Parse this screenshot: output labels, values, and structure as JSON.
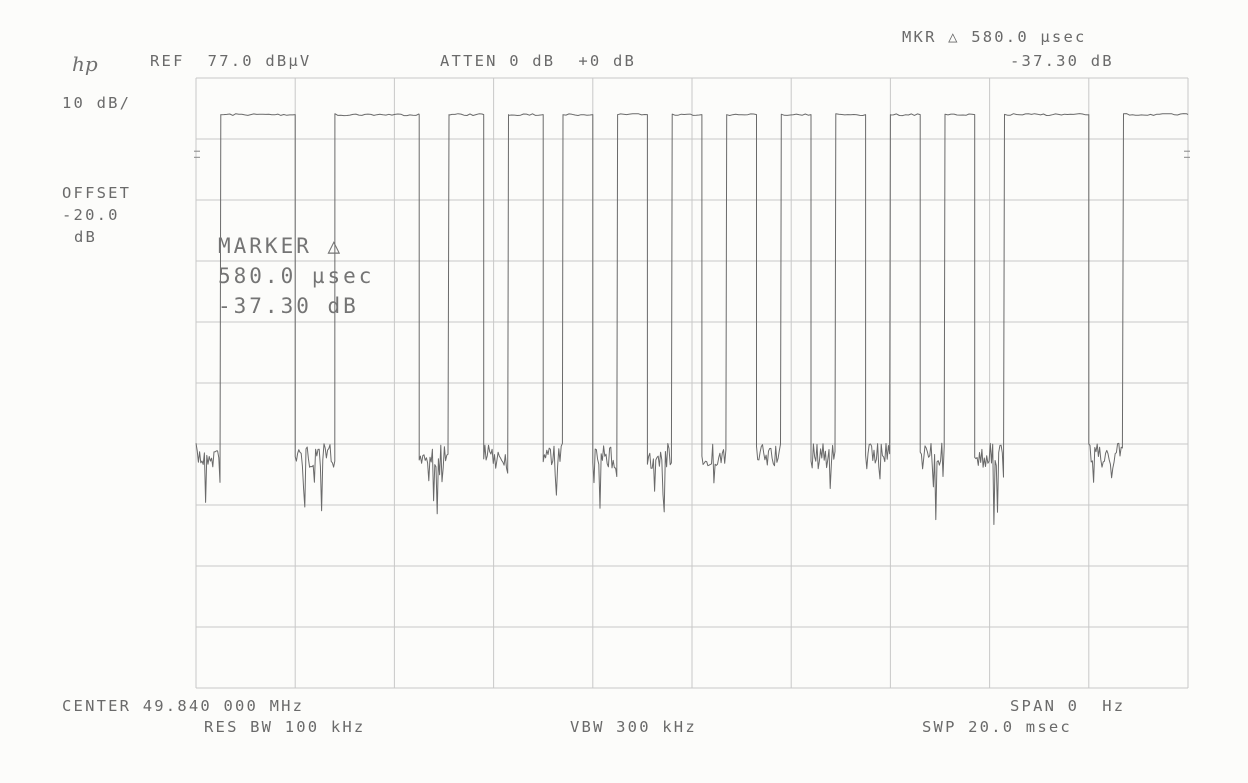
{
  "header": {
    "logo": "hp",
    "ref": "REF  77.0 dBµV",
    "atten": "ATTEN 0 dB  +0 dB",
    "mkr_line1": "MKR △ 580.0 µsec",
    "mkr_line2": "-37.30 dB",
    "scale": "10 dB/"
  },
  "offset": {
    "label": "OFFSET",
    "value": "-20.0",
    "unit": "dB"
  },
  "marker_box": {
    "line1": "MARKER △",
    "line2": "580.0 µsec",
    "line3": "-37.30 dB"
  },
  "footer": {
    "center": "CENTER 49.840 000 MHz",
    "span": "SPAN 0  Hz",
    "res_bw": "RES BW 100 kHz",
    "vbw": "VBW 300 kHz",
    "swp": "SWP 20.0 msec"
  },
  "colors": {
    "paper": "#fcfcfa",
    "grid": "#c8c8c8",
    "trace": "#6a6a6a",
    "text": "#6a6a6a"
  },
  "chart_data": {
    "type": "line",
    "title": "",
    "xlabel": "",
    "ylabel": "",
    "x_range_msec": [
      0,
      20
    ],
    "y_reference_dBuV": 77.0,
    "y_scale_dB_per_div": 10,
    "y_divisions": 10,
    "x_divisions": 10,
    "grid": true,
    "high_level_dBuV": 71.0,
    "noise_floor_dBuV": 15.0,
    "pulses_msec": [
      [
        0.5,
        2.0
      ],
      [
        2.8,
        4.5
      ],
      [
        5.1,
        5.8
      ],
      [
        6.3,
        7.0
      ],
      [
        7.4,
        8.0
      ],
      [
        8.5,
        9.1
      ],
      [
        9.6,
        10.2
      ],
      [
        10.7,
        11.3
      ],
      [
        11.8,
        12.4
      ],
      [
        12.9,
        13.5
      ],
      [
        14.0,
        14.6
      ],
      [
        15.1,
        15.7
      ],
      [
        16.3,
        18.0
      ],
      [
        18.7,
        20.0
      ]
    ],
    "marker_delta": {
      "time": "580.0 µsec",
      "level": "-37.30 dB"
    }
  }
}
